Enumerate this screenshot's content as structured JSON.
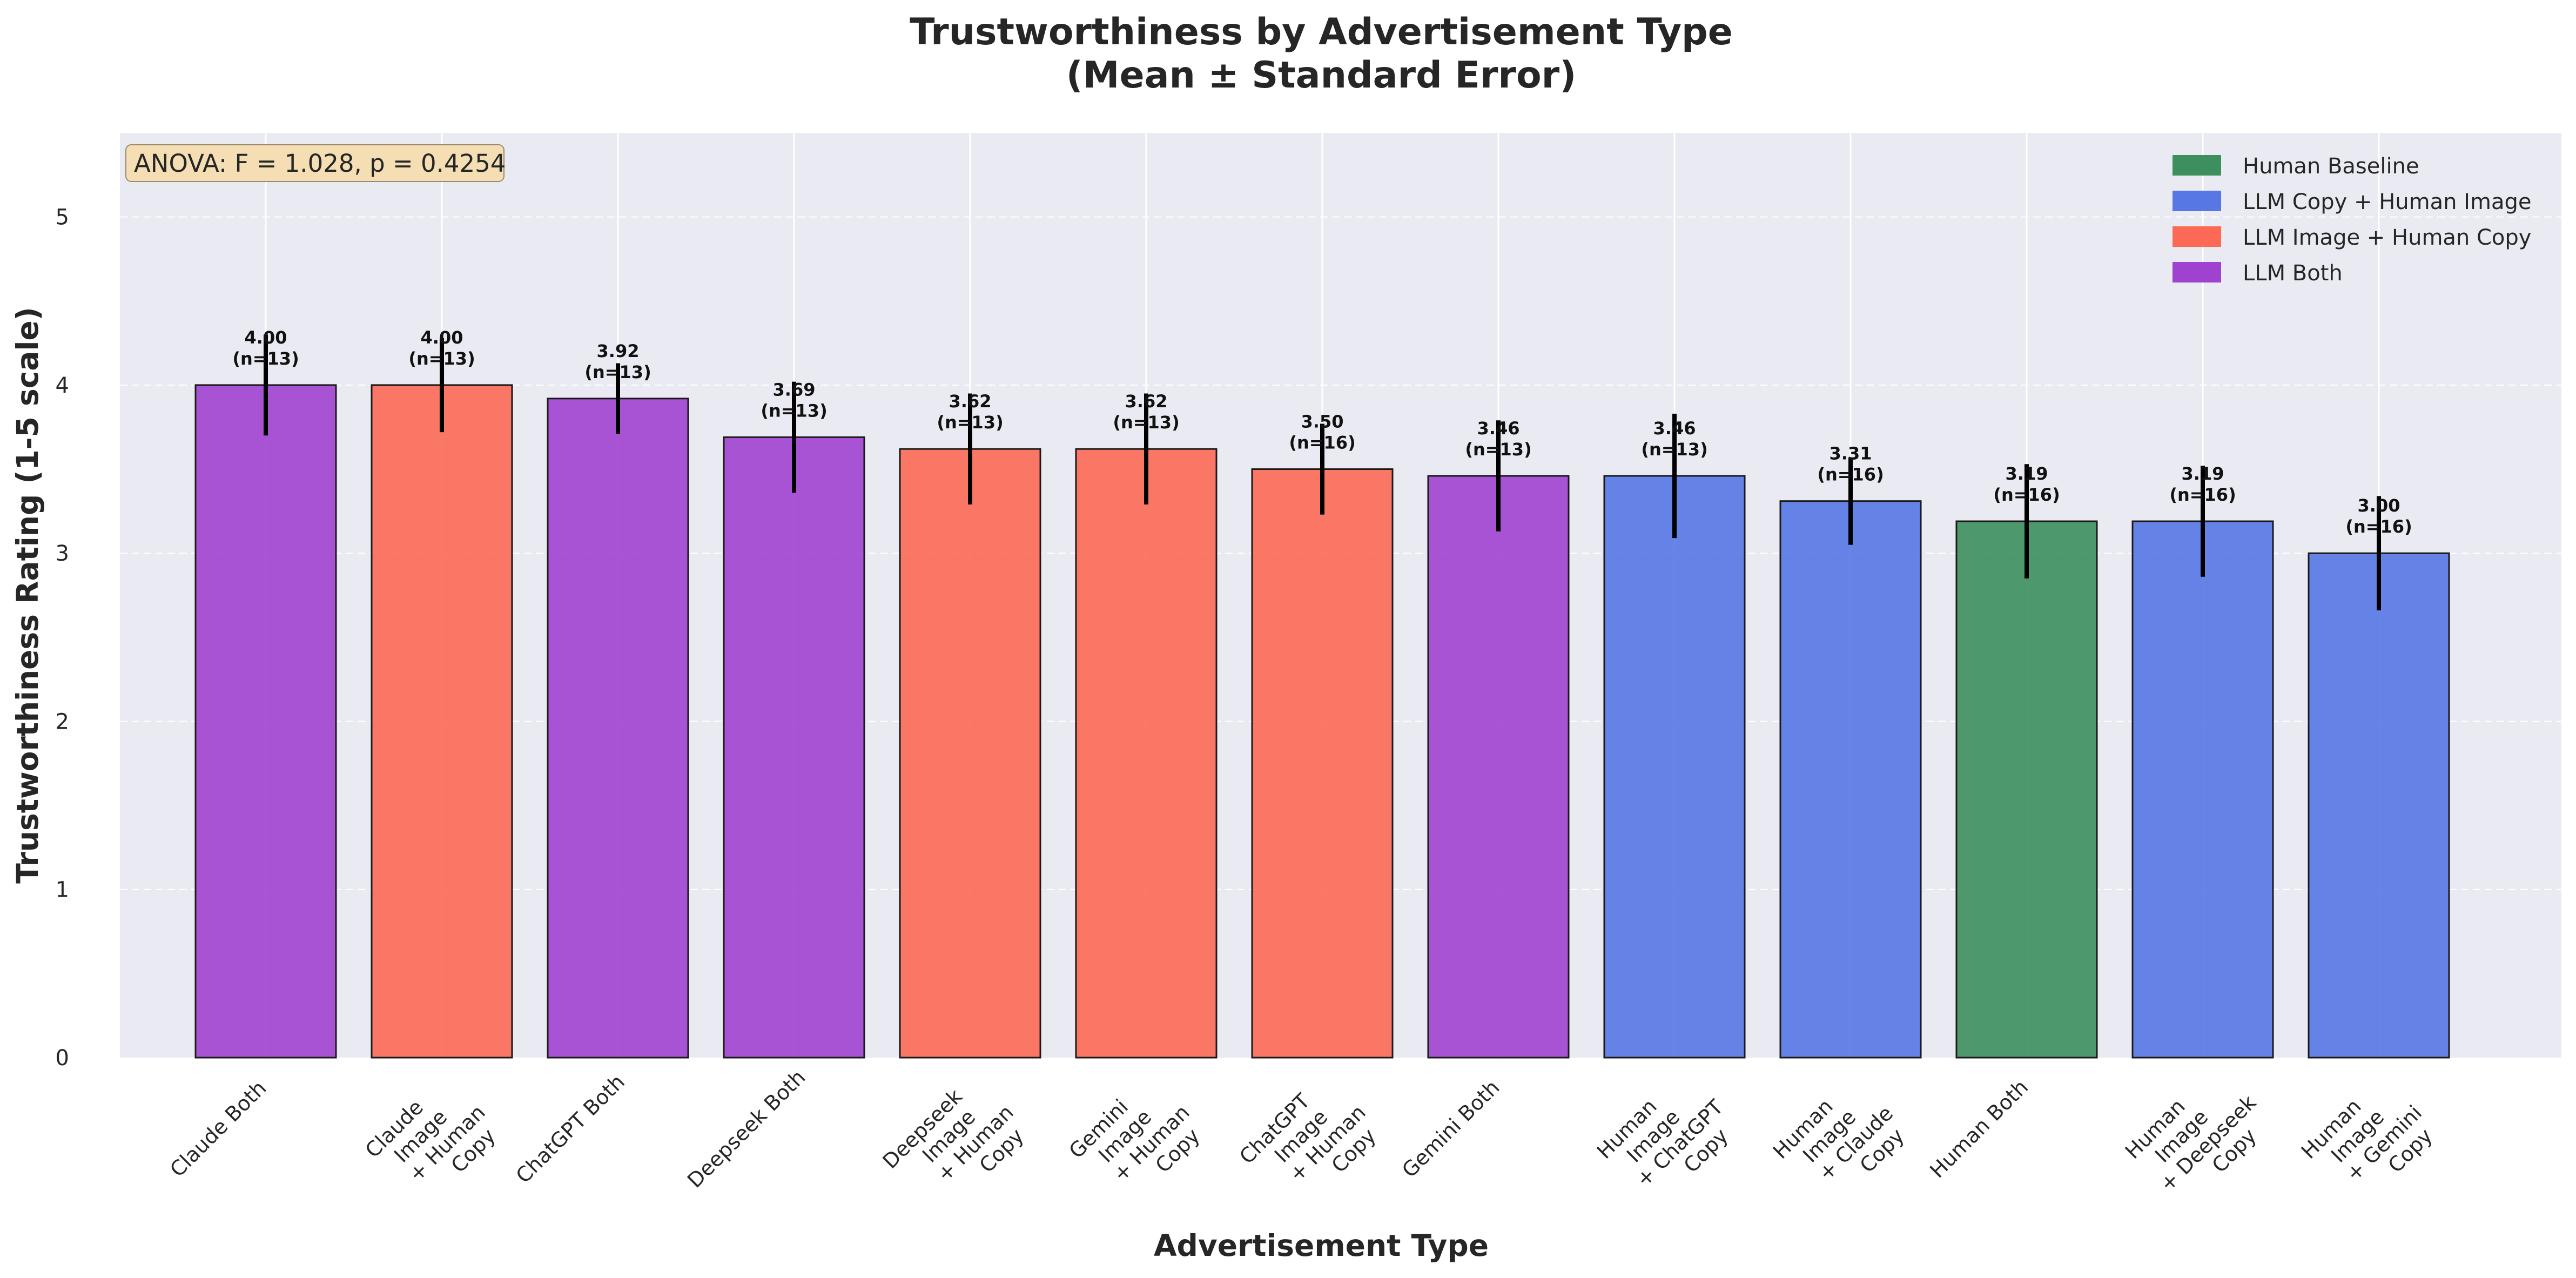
{
  "chart_data": {
    "type": "bar",
    "title": [
      "Trustworthiness by Advertisement Type",
      "(Mean ± Standard Error)"
    ],
    "xlabel": "Advertisement Type",
    "ylabel": "Trustworthiness Rating (1-5 scale)",
    "ylim": [
      0,
      5.5
    ],
    "yticks": [
      "0",
      "1",
      "2",
      "3",
      "4",
      "5"
    ],
    "grid": true,
    "legend_position": "top-right",
    "annotation": "ANOVA: F = 1.028, p = 0.4254",
    "legend": [
      {
        "name": "Human Baseline",
        "color": "#3d8f5e"
      },
      {
        "name": "LLM Copy + Human Image",
        "color": "#5677e4"
      },
      {
        "name": "LLM Image + Human Copy",
        "color": "#fc6a55"
      },
      {
        "name": "LLM Both",
        "color": "#a042d0"
      }
    ],
    "bars": [
      {
        "category": [
          "Claude Both"
        ],
        "value": 4.0,
        "se": 0.3,
        "value_label": "4.00",
        "n_label": "(n=13)",
        "group": "LLM Both"
      },
      {
        "category": [
          "Claude",
          "Image",
          "+ Human",
          "Copy"
        ],
        "value": 4.0,
        "se": 0.28,
        "value_label": "4.00",
        "n_label": "(n=13)",
        "group": "LLM Image + Human Copy"
      },
      {
        "category": [
          "ChatGPT Both"
        ],
        "value": 3.92,
        "se": 0.21,
        "value_label": "3.92",
        "n_label": "(n=13)",
        "group": "LLM Both"
      },
      {
        "category": [
          "Deepseek Both"
        ],
        "value": 3.69,
        "se": 0.33,
        "value_label": "3.69",
        "n_label": "(n=13)",
        "group": "LLM Both"
      },
      {
        "category": [
          "Deepseek",
          "Image",
          "+ Human",
          "Copy"
        ],
        "value": 3.62,
        "se": 0.33,
        "value_label": "3.62",
        "n_label": "(n=13)",
        "group": "LLM Image + Human Copy"
      },
      {
        "category": [
          "Gemini",
          "Image",
          "+ Human",
          "Copy"
        ],
        "value": 3.62,
        "se": 0.33,
        "value_label": "3.62",
        "n_label": "(n=13)",
        "group": "LLM Image + Human Copy"
      },
      {
        "category": [
          "ChatGPT",
          "Image",
          "+ Human",
          "Copy"
        ],
        "value": 3.5,
        "se": 0.27,
        "value_label": "3.50",
        "n_label": "(n=16)",
        "group": "LLM Image + Human Copy"
      },
      {
        "category": [
          "Gemini Both"
        ],
        "value": 3.46,
        "se": 0.33,
        "value_label": "3.46",
        "n_label": "(n=13)",
        "group": "LLM Both"
      },
      {
        "category": [
          "Human",
          "Image",
          "+ ChatGPT",
          "Copy"
        ],
        "value": 3.46,
        "se": 0.37,
        "value_label": "3.46",
        "n_label": "(n=13)",
        "group": "LLM Copy + Human Image"
      },
      {
        "category": [
          "Human",
          "Image",
          "+ Claude",
          "Copy"
        ],
        "value": 3.31,
        "se": 0.26,
        "value_label": "3.31",
        "n_label": "(n=16)",
        "group": "LLM Copy + Human Image"
      },
      {
        "category": [
          "Human Both"
        ],
        "value": 3.19,
        "se": 0.34,
        "value_label": "3.19",
        "n_label": "(n=16)",
        "group": "Human Baseline"
      },
      {
        "category": [
          "Human",
          "Image",
          "+ Deepseek",
          "Copy"
        ],
        "value": 3.19,
        "se": 0.33,
        "value_label": "3.19",
        "n_label": "(n=16)",
        "group": "LLM Copy + Human Image"
      },
      {
        "category": [
          "Human",
          "Image",
          "+ Gemini",
          "Copy"
        ],
        "value": 3.0,
        "se": 0.34,
        "value_label": "3.00",
        "n_label": "(n=16)",
        "group": "LLM Copy + Human Image"
      }
    ]
  }
}
